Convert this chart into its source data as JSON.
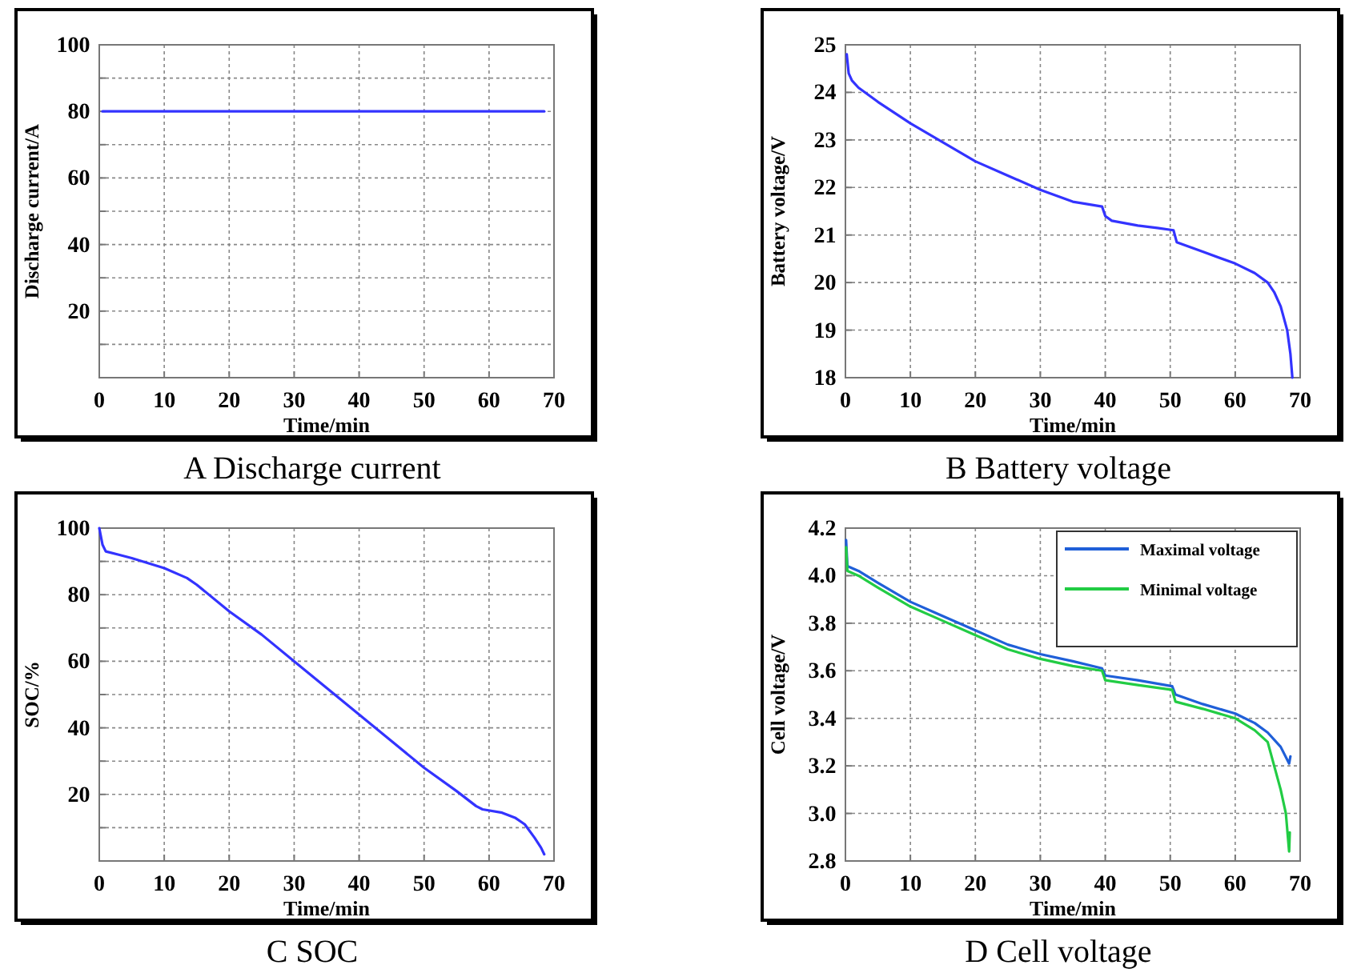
{
  "chart_data": [
    {
      "type": "line",
      "title": "A Discharge current",
      "xlabel": "Time/min",
      "ylabel": "Discharge current/A",
      "xlim": [
        0,
        70
      ],
      "xticks": [
        0,
        10,
        20,
        30,
        40,
        50,
        60,
        70
      ],
      "ylim": [
        0,
        100
      ],
      "yticks": [
        {
          "value": 10,
          "label": null
        },
        20,
        {
          "value": 30,
          "label": null
        },
        40,
        {
          "value": 50,
          "label": null
        },
        60,
        {
          "value": 70,
          "label": null
        },
        80,
        {
          "value": 90,
          "label": null
        },
        100
      ],
      "grid": true,
      "series": [
        {
          "color": "#3333ff",
          "x": [
            0.5,
            10,
            20,
            30,
            40,
            50,
            60,
            68.5
          ],
          "values": [
            80,
            80,
            80,
            80,
            80,
            80,
            80,
            80
          ]
        }
      ]
    },
    {
      "type": "line",
      "title": "B Battery voltage",
      "xlabel": "Time/min",
      "ylabel": "Battery voltage/V",
      "xlim": [
        0,
        70
      ],
      "xticks": [
        0,
        10,
        20,
        30,
        40,
        50,
        60,
        70
      ],
      "ylim": [
        18,
        25
      ],
      "yticks": [
        18,
        19,
        20,
        21,
        22,
        23,
        24,
        25
      ],
      "grid": true,
      "series": [
        {
          "color": "#3333ff",
          "x": [
            0.2,
            0.5,
            1,
            2,
            5,
            10,
            15,
            20,
            25,
            30,
            35,
            39.5,
            40,
            41,
            45,
            48,
            50.5,
            51,
            55,
            60,
            63,
            65,
            66,
            67,
            68,
            68.5,
            68.8
          ],
          "values": [
            24.8,
            24.4,
            24.25,
            24.1,
            23.8,
            23.35,
            22.95,
            22.55,
            22.25,
            21.95,
            21.7,
            21.6,
            21.4,
            21.3,
            21.2,
            21.15,
            21.1,
            20.85,
            20.65,
            20.4,
            20.2,
            20.0,
            19.8,
            19.5,
            19.0,
            18.5,
            18.0
          ]
        }
      ]
    },
    {
      "type": "line",
      "title": "C SOC",
      "xlabel": "Time/min",
      "ylabel": "SOC/%",
      "xlim": [
        0,
        70
      ],
      "xticks": [
        0,
        10,
        20,
        30,
        40,
        50,
        60,
        70
      ],
      "ylim": [
        0,
        100
      ],
      "yticks": [
        {
          "value": 10,
          "label": null
        },
        20,
        {
          "value": 30,
          "label": null
        },
        40,
        {
          "value": 50,
          "label": null
        },
        60,
        {
          "value": 70,
          "label": null
        },
        80,
        {
          "value": 90,
          "label": null
        },
        100
      ],
      "grid": true,
      "series": [
        {
          "color": "#3333ff",
          "x": [
            0,
            0.5,
            1,
            3,
            5,
            10,
            13.5,
            15,
            20,
            25,
            30,
            35,
            40,
            45,
            50,
            55,
            58,
            59,
            62,
            64,
            65.5,
            67,
            68,
            68.5
          ],
          "values": [
            100,
            95,
            93,
            92,
            91,
            88,
            85,
            83,
            75,
            68,
            60,
            52,
            44,
            36,
            28,
            21,
            16.5,
            15.5,
            14.5,
            13,
            11,
            7,
            4,
            2
          ]
        }
      ]
    },
    {
      "type": "line",
      "title": "D Cell voltage",
      "xlabel": "Time/min",
      "ylabel": "Cell voltage/V",
      "xlim": [
        0,
        70
      ],
      "xticks": [
        0,
        10,
        20,
        30,
        40,
        50,
        60,
        70
      ],
      "ylim": [
        2.8,
        4.2
      ],
      "yticks": [
        {
          "value": 2.8,
          "label": "2.8"
        },
        {
          "value": 3.0,
          "label": "3.0"
        },
        {
          "value": 3.2,
          "label": "3.2"
        },
        {
          "value": 3.4,
          "label": "3.4"
        },
        {
          "value": 3.6,
          "label": "3.6"
        },
        {
          "value": 3.8,
          "label": "3.8"
        },
        {
          "value": 4.0,
          "label": "4.0"
        },
        {
          "value": 4.2,
          "label": "4.2"
        }
      ],
      "grid": true,
      "legend": "top right",
      "series": [
        {
          "name": "Maximal voltage",
          "color": "#1f5fd8",
          "x": [
            0.1,
            0.3,
            2,
            5,
            10,
            15,
            20,
            25,
            30,
            35,
            39.5,
            40,
            45,
            50.3,
            50.8,
            55,
            60,
            63,
            65,
            67,
            68.3,
            68.5
          ],
          "values": [
            4.15,
            4.04,
            4.02,
            3.97,
            3.89,
            3.83,
            3.77,
            3.71,
            3.67,
            3.64,
            3.61,
            3.58,
            3.56,
            3.535,
            3.5,
            3.46,
            3.42,
            3.38,
            3.34,
            3.28,
            3.21,
            3.24
          ]
        },
        {
          "name": "Minimal voltage",
          "color": "#22cc44",
          "x": [
            0.1,
            0.3,
            2,
            5,
            10,
            15,
            20,
            25,
            30,
            35,
            39.5,
            40,
            45,
            50.3,
            50.8,
            55,
            60,
            63,
            65,
            66,
            67,
            67.8,
            68.3,
            68.4
          ],
          "values": [
            4.12,
            4.02,
            4.0,
            3.95,
            3.87,
            3.81,
            3.75,
            3.69,
            3.65,
            3.62,
            3.6,
            3.56,
            3.54,
            3.52,
            3.47,
            3.44,
            3.4,
            3.35,
            3.3,
            3.2,
            3.1,
            3.0,
            2.84,
            2.92
          ]
        }
      ]
    }
  ]
}
